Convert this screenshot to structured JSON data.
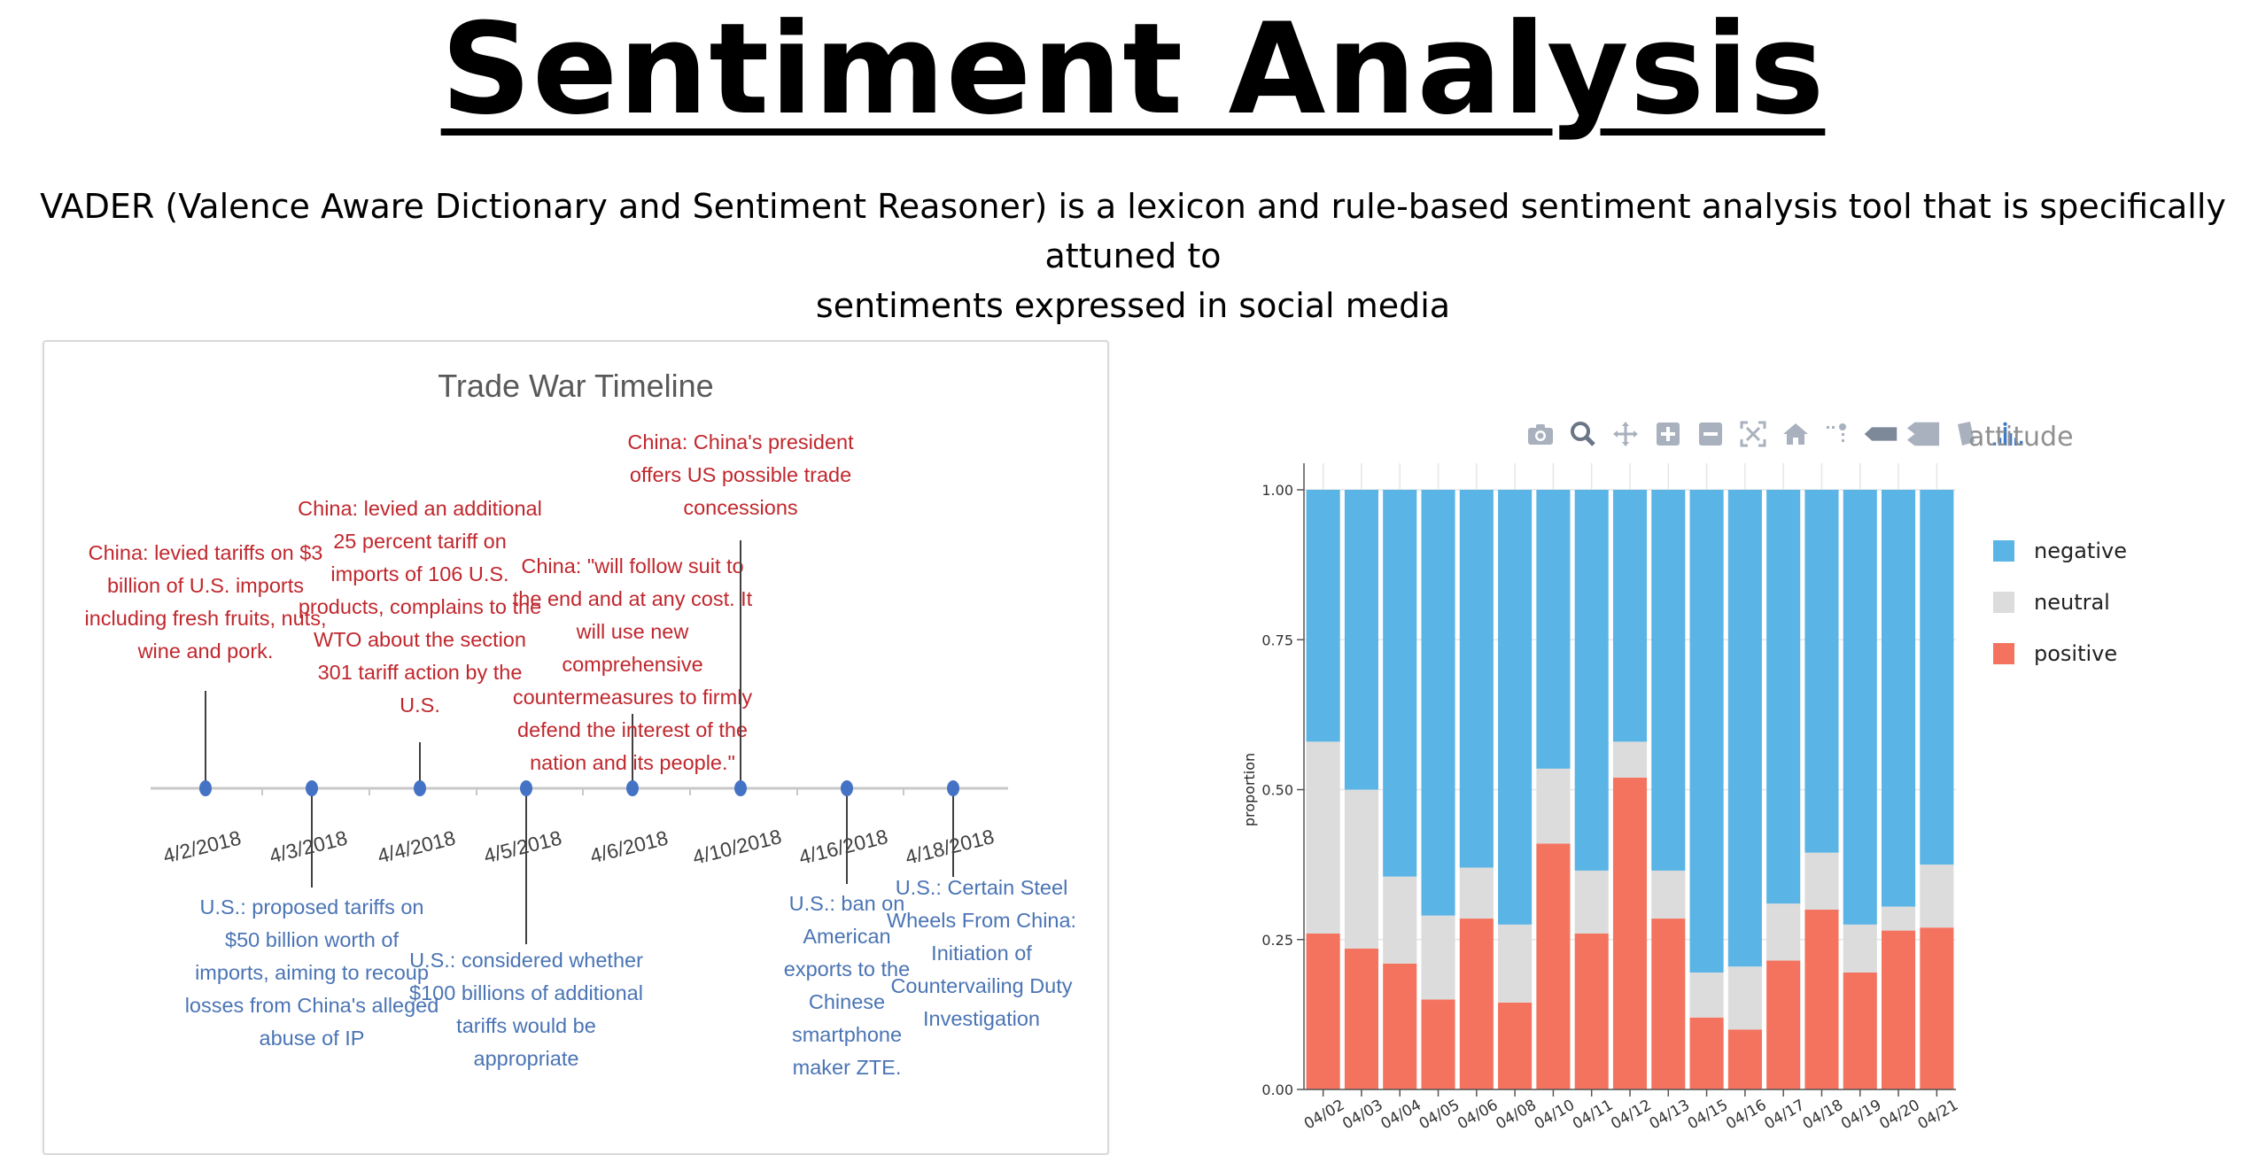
{
  "page": {
    "title": "Sentiment Analysis",
    "intro_line1": "VADER (Valence Aware Dictionary and Sentiment Reasoner) is a lexicon and rule-based sentiment analysis tool that is specifically attuned to",
    "intro_line2": "sentiments expressed in social media"
  },
  "timeline": {
    "title": "Trade War Timeline",
    "dates": [
      "4/2/2018",
      "4/3/2018",
      "4/4/2018",
      "4/5/2018",
      "4/6/2018",
      "4/10/2018",
      "4/16/2018",
      "4/18/2018"
    ],
    "china_events": [
      {
        "date_index": 0,
        "lines": [
          "China: levied tariffs on $3",
          "billion of U.S. imports",
          "including fresh fruits, nuts,",
          "wine and pork."
        ]
      },
      {
        "date_index": 2,
        "lines": [
          "China: levied an additional",
          "25 percent tariff on",
          "imports of 106 U.S.",
          "products, complains to the",
          "WTO about the section",
          "301 tariff action by the",
          "U.S."
        ]
      },
      {
        "date_index": 4,
        "lines": [
          "China: \"will follow suit to",
          "the end and at any cost. It",
          "will use new",
          "comprehensive",
          "countermeasures to firmly",
          "defend the interest of the",
          "nation and its people.\""
        ]
      },
      {
        "date_index": 5,
        "lines": [
          "China: China's president",
          "offers US possible trade",
          "concessions"
        ]
      }
    ],
    "us_events": [
      {
        "date_index": 1,
        "lines": [
          "U.S.: proposed tariffs on",
          "$50 billion worth of",
          "imports, aiming to recoup",
          "losses from China's alleged",
          "abuse of IP"
        ]
      },
      {
        "date_index": 3,
        "lines": [
          "U.S.: considered whether",
          "$100 billions of additional",
          "tariffs would be",
          "appropriate"
        ]
      },
      {
        "date_index": 6,
        "lines": [
          "U.S.: ban on",
          "American",
          "exports to the",
          "Chinese",
          "smartphone",
          "maker ZTE."
        ]
      },
      {
        "date_index": 7,
        "lines": [
          "U.S.: Certain Steel",
          "Wheels From China:",
          "Initiation of",
          "Countervailing Duty",
          "Investigation"
        ]
      }
    ],
    "colors": {
      "china": "#c0272d",
      "us": "#4a74b4",
      "axis": "#c8c8c8",
      "marker": "#4472c4"
    }
  },
  "modebar": {
    "buttons": [
      "camera-icon",
      "zoom-icon",
      "pan-icon",
      "zoom-in-icon",
      "zoom-out-icon",
      "autoscale-icon",
      "reset-axes-icon",
      "spike-lines-icon",
      "hover-closest-icon",
      "hover-compare-icon",
      "toggle-legend-icon",
      "plotly-logo-icon"
    ]
  },
  "chart_data": {
    "type": "bar",
    "stacked": true,
    "categories": [
      "04/02",
      "04/03",
      "04/04",
      "04/05",
      "04/06",
      "04/08",
      "04/10",
      "04/11",
      "04/12",
      "04/13",
      "04/15",
      "04/16",
      "04/17",
      "04/18",
      "04/19",
      "04/20",
      "04/21"
    ],
    "series": [
      {
        "name": "positive",
        "color": "#f4735f",
        "values": [
          0.26,
          0.235,
          0.21,
          0.15,
          0.285,
          0.145,
          0.41,
          0.26,
          0.52,
          0.285,
          0.12,
          0.1,
          0.215,
          0.3,
          0.195,
          0.265,
          0.27
        ]
      },
      {
        "name": "neutral",
        "color": "#dcdcdc",
        "values": [
          0.32,
          0.265,
          0.145,
          0.14,
          0.085,
          0.13,
          0.125,
          0.105,
          0.06,
          0.08,
          0.075,
          0.105,
          0.095,
          0.095,
          0.08,
          0.04,
          0.105
        ]
      },
      {
        "name": "negative",
        "color": "#5ab4e5",
        "values": [
          0.42,
          0.5,
          0.645,
          0.71,
          0.63,
          0.725,
          0.465,
          0.635,
          0.42,
          0.635,
          0.805,
          0.795,
          0.69,
          0.605,
          0.725,
          0.695,
          0.625
        ]
      }
    ],
    "ylabel": "proportion",
    "xlabel": "",
    "ylim": [
      0,
      1
    ],
    "yticks": [
      "0.00",
      "0.25",
      "0.50",
      "0.75",
      "1.00"
    ],
    "legend_title": "attitude",
    "legend_order": [
      "negative",
      "neutral",
      "positive"
    ],
    "legend_placement": "right",
    "grid": true
  }
}
